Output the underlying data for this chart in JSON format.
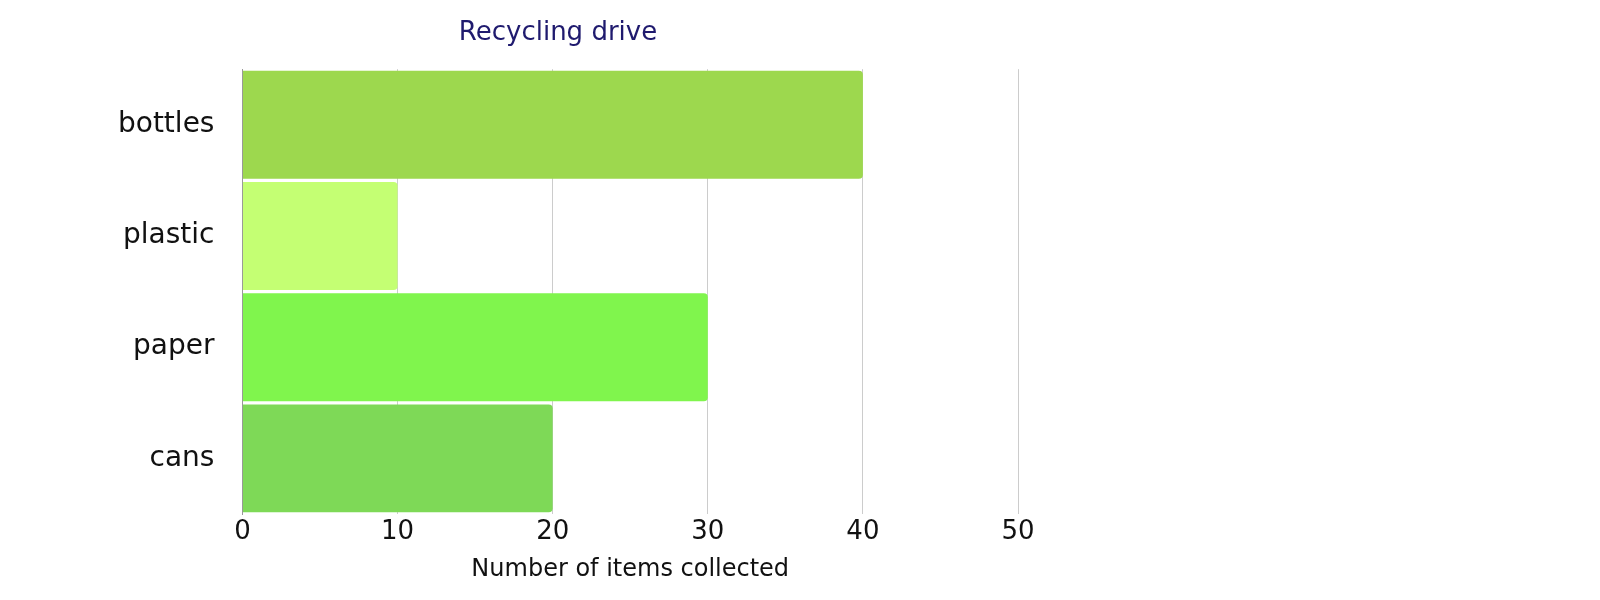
{
  "chart_data": {
    "type": "bar",
    "orientation": "horizontal",
    "title": "Recycling drive",
    "xlabel": "Number of items collected",
    "categories": [
      "bottles",
      "plastic",
      "paper",
      "cans"
    ],
    "values": [
      40,
      10,
      30,
      20
    ],
    "colors": [
      "#9dd84e",
      "#c4ff73",
      "#80f54d",
      "#7ed957"
    ],
    "xlim": [
      0,
      50
    ],
    "xticks": [
      0,
      10,
      20,
      30,
      40,
      50
    ],
    "grid": "x",
    "legend": false
  }
}
